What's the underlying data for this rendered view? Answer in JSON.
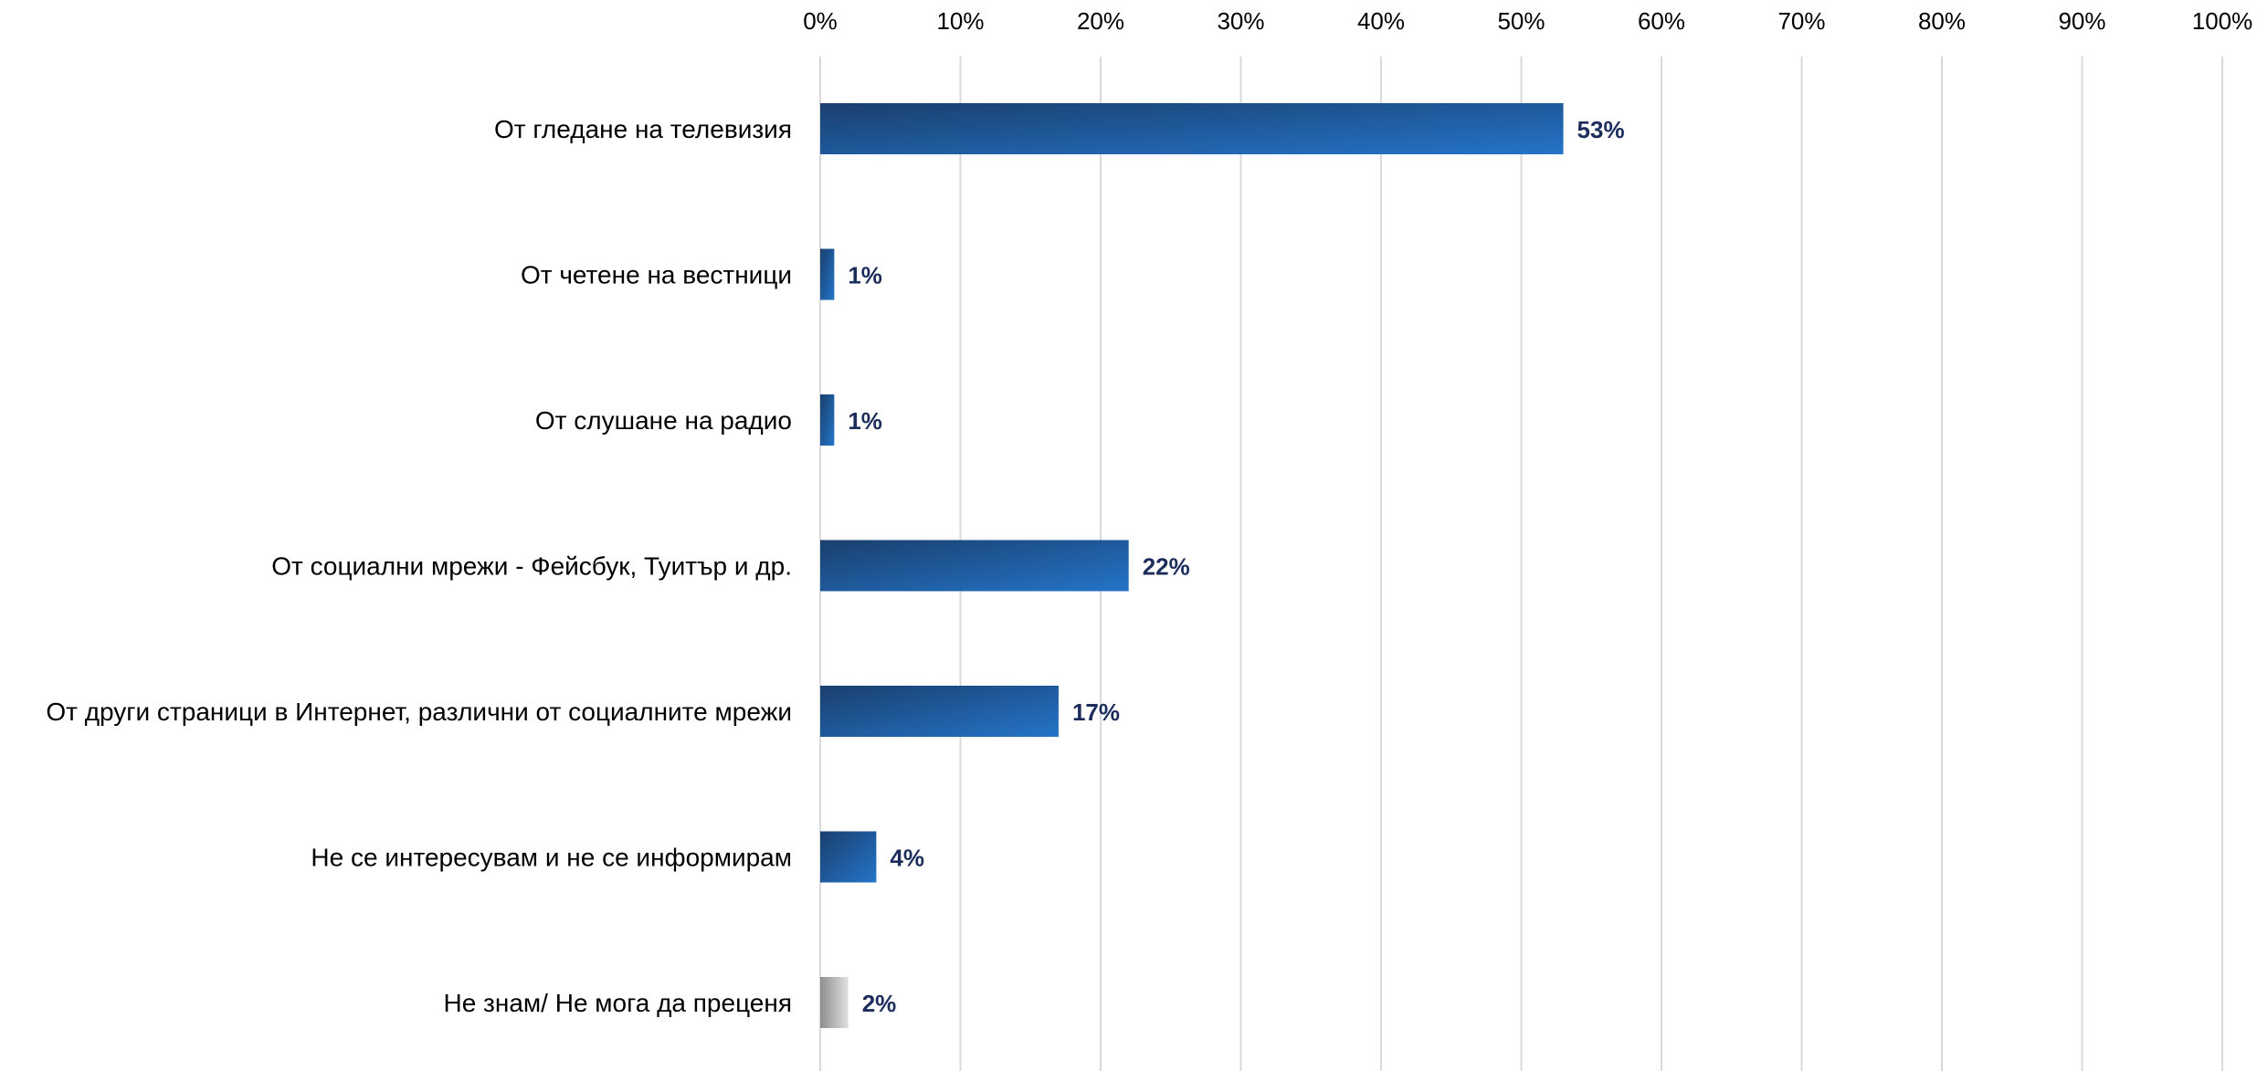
{
  "chart_data": {
    "type": "bar",
    "orientation": "horizontal",
    "categories": [
      "От гледане на телевизия",
      "От четене на вестници",
      "От слушане на радио",
      "От социални мрежи - Фейсбук, Туитър и др.",
      "От други страници в Интернет, различни от социалните мрежи",
      "Не се интересувам и не се информирам",
      "Не знам/ Не мога да преценя"
    ],
    "values": [
      53,
      1,
      1,
      22,
      17,
      4,
      2
    ],
    "value_labels": [
      "53%",
      "1%",
      "1%",
      "22%",
      "17%",
      "4%",
      "2%"
    ],
    "xlim": [
      0,
      100
    ],
    "x_ticks": [
      0,
      10,
      20,
      30,
      40,
      50,
      60,
      70,
      80,
      90,
      100
    ],
    "x_tick_labels": [
      "0%",
      "10%",
      "20%",
      "30%",
      "40%",
      "50%",
      "60%",
      "70%",
      "80%",
      "90%",
      "100%"
    ],
    "x_axis_position": "top",
    "grid": true,
    "legend": "none",
    "bar_colors": [
      "blue",
      "blue",
      "blue",
      "blue",
      "blue",
      "blue",
      "gray"
    ],
    "colors": {
      "bar_blue_dark": "#1a3f6e",
      "bar_blue_light": "#2474c8",
      "bar_gray_dark": "#8e8e8e",
      "bar_gray_light": "#e0e0e0",
      "grid": "#d9d9d9",
      "data_label": "#1c2d5c",
      "text": "#000000"
    }
  }
}
